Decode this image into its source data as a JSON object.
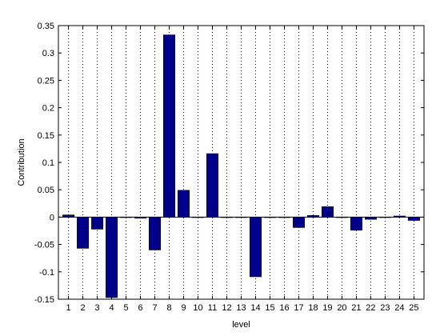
{
  "chart_data": {
    "type": "bar",
    "title": "",
    "xlabel": "level",
    "ylabel": "Contribution",
    "categories": [
      "1",
      "2",
      "3",
      "4",
      "5",
      "6",
      "7",
      "8",
      "9",
      "10",
      "11",
      "12",
      "13",
      "14",
      "15",
      "16",
      "17",
      "18",
      "19",
      "20",
      "21",
      "22",
      "23",
      "24",
      "25"
    ],
    "values": [
      0.004,
      -0.057,
      -0.022,
      -0.147,
      0.0,
      -0.002,
      -0.06,
      0.333,
      0.049,
      0.0,
      0.116,
      0.0,
      0.0,
      -0.109,
      0.0,
      0.0,
      -0.019,
      0.003,
      0.019,
      0.0,
      -0.024,
      -0.004,
      0.0,
      0.002,
      -0.006
    ],
    "xlim": [
      0.3,
      25.7
    ],
    "ylim": [
      -0.15,
      0.35
    ],
    "yticks": [
      -0.15,
      -0.1,
      -0.05,
      0,
      0.05,
      0.1,
      0.15,
      0.2,
      0.25,
      0.3,
      0.35
    ],
    "ytick_labels": [
      "-0.15",
      "-0.1",
      "-0.05",
      "0",
      "0.05",
      "0.1",
      "0.15",
      "0.2",
      "0.25",
      "0.3",
      "0.35"
    ],
    "grid": "x-dotted",
    "bar_color": "#00008b",
    "bar_edge_color": "#000000"
  }
}
